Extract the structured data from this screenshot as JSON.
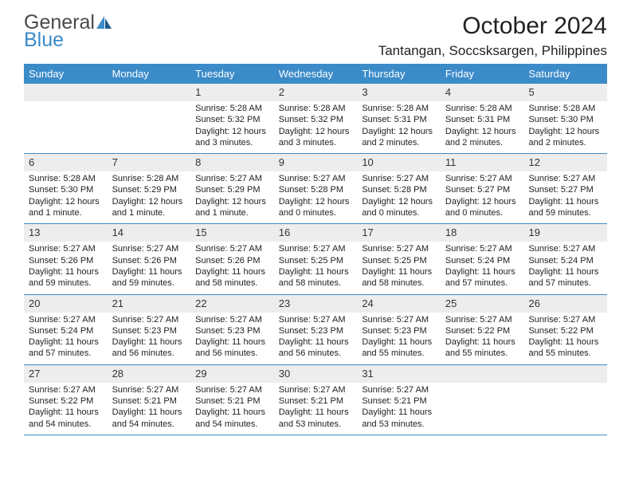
{
  "logo": {
    "text1": "General",
    "text2": "Blue"
  },
  "title": "October 2024",
  "location": "Tantangan, Soccsksargen, Philippines",
  "colors": {
    "header_bg": "#3b8bc9",
    "header_text": "#ffffff",
    "daynum_bg": "#ededed",
    "border": "#3b8bc9",
    "logo_gray": "#4a4a4a",
    "logo_blue": "#3b8bc9",
    "page_bg": "#ffffff",
    "text": "#222222"
  },
  "day_headers": [
    "Sunday",
    "Monday",
    "Tuesday",
    "Wednesday",
    "Thursday",
    "Friday",
    "Saturday"
  ],
  "weeks": [
    [
      {
        "day": "",
        "sunrise": "",
        "sunset": "",
        "daylight": ""
      },
      {
        "day": "",
        "sunrise": "",
        "sunset": "",
        "daylight": ""
      },
      {
        "day": "1",
        "sunrise": "5:28 AM",
        "sunset": "5:32 PM",
        "daylight": "12 hours and 3 minutes."
      },
      {
        "day": "2",
        "sunrise": "5:28 AM",
        "sunset": "5:32 PM",
        "daylight": "12 hours and 3 minutes."
      },
      {
        "day": "3",
        "sunrise": "5:28 AM",
        "sunset": "5:31 PM",
        "daylight": "12 hours and 2 minutes."
      },
      {
        "day": "4",
        "sunrise": "5:28 AM",
        "sunset": "5:31 PM",
        "daylight": "12 hours and 2 minutes."
      },
      {
        "day": "5",
        "sunrise": "5:28 AM",
        "sunset": "5:30 PM",
        "daylight": "12 hours and 2 minutes."
      }
    ],
    [
      {
        "day": "6",
        "sunrise": "5:28 AM",
        "sunset": "5:30 PM",
        "daylight": "12 hours and 1 minute."
      },
      {
        "day": "7",
        "sunrise": "5:28 AM",
        "sunset": "5:29 PM",
        "daylight": "12 hours and 1 minute."
      },
      {
        "day": "8",
        "sunrise": "5:27 AM",
        "sunset": "5:29 PM",
        "daylight": "12 hours and 1 minute."
      },
      {
        "day": "9",
        "sunrise": "5:27 AM",
        "sunset": "5:28 PM",
        "daylight": "12 hours and 0 minutes."
      },
      {
        "day": "10",
        "sunrise": "5:27 AM",
        "sunset": "5:28 PM",
        "daylight": "12 hours and 0 minutes."
      },
      {
        "day": "11",
        "sunrise": "5:27 AM",
        "sunset": "5:27 PM",
        "daylight": "12 hours and 0 minutes."
      },
      {
        "day": "12",
        "sunrise": "5:27 AM",
        "sunset": "5:27 PM",
        "daylight": "11 hours and 59 minutes."
      }
    ],
    [
      {
        "day": "13",
        "sunrise": "5:27 AM",
        "sunset": "5:26 PM",
        "daylight": "11 hours and 59 minutes."
      },
      {
        "day": "14",
        "sunrise": "5:27 AM",
        "sunset": "5:26 PM",
        "daylight": "11 hours and 59 minutes."
      },
      {
        "day": "15",
        "sunrise": "5:27 AM",
        "sunset": "5:26 PM",
        "daylight": "11 hours and 58 minutes."
      },
      {
        "day": "16",
        "sunrise": "5:27 AM",
        "sunset": "5:25 PM",
        "daylight": "11 hours and 58 minutes."
      },
      {
        "day": "17",
        "sunrise": "5:27 AM",
        "sunset": "5:25 PM",
        "daylight": "11 hours and 58 minutes."
      },
      {
        "day": "18",
        "sunrise": "5:27 AM",
        "sunset": "5:24 PM",
        "daylight": "11 hours and 57 minutes."
      },
      {
        "day": "19",
        "sunrise": "5:27 AM",
        "sunset": "5:24 PM",
        "daylight": "11 hours and 57 minutes."
      }
    ],
    [
      {
        "day": "20",
        "sunrise": "5:27 AM",
        "sunset": "5:24 PM",
        "daylight": "11 hours and 57 minutes."
      },
      {
        "day": "21",
        "sunrise": "5:27 AM",
        "sunset": "5:23 PM",
        "daylight": "11 hours and 56 minutes."
      },
      {
        "day": "22",
        "sunrise": "5:27 AM",
        "sunset": "5:23 PM",
        "daylight": "11 hours and 56 minutes."
      },
      {
        "day": "23",
        "sunrise": "5:27 AM",
        "sunset": "5:23 PM",
        "daylight": "11 hours and 56 minutes."
      },
      {
        "day": "24",
        "sunrise": "5:27 AM",
        "sunset": "5:23 PM",
        "daylight": "11 hours and 55 minutes."
      },
      {
        "day": "25",
        "sunrise": "5:27 AM",
        "sunset": "5:22 PM",
        "daylight": "11 hours and 55 minutes."
      },
      {
        "day": "26",
        "sunrise": "5:27 AM",
        "sunset": "5:22 PM",
        "daylight": "11 hours and 55 minutes."
      }
    ],
    [
      {
        "day": "27",
        "sunrise": "5:27 AM",
        "sunset": "5:22 PM",
        "daylight": "11 hours and 54 minutes."
      },
      {
        "day": "28",
        "sunrise": "5:27 AM",
        "sunset": "5:21 PM",
        "daylight": "11 hours and 54 minutes."
      },
      {
        "day": "29",
        "sunrise": "5:27 AM",
        "sunset": "5:21 PM",
        "daylight": "11 hours and 54 minutes."
      },
      {
        "day": "30",
        "sunrise": "5:27 AM",
        "sunset": "5:21 PM",
        "daylight": "11 hours and 53 minutes."
      },
      {
        "day": "31",
        "sunrise": "5:27 AM",
        "sunset": "5:21 PM",
        "daylight": "11 hours and 53 minutes."
      },
      {
        "day": "",
        "sunrise": "",
        "sunset": "",
        "daylight": ""
      },
      {
        "day": "",
        "sunrise": "",
        "sunset": "",
        "daylight": ""
      }
    ]
  ],
  "labels": {
    "sunrise": "Sunrise: ",
    "sunset": "Sunset: ",
    "daylight": "Daylight: "
  }
}
